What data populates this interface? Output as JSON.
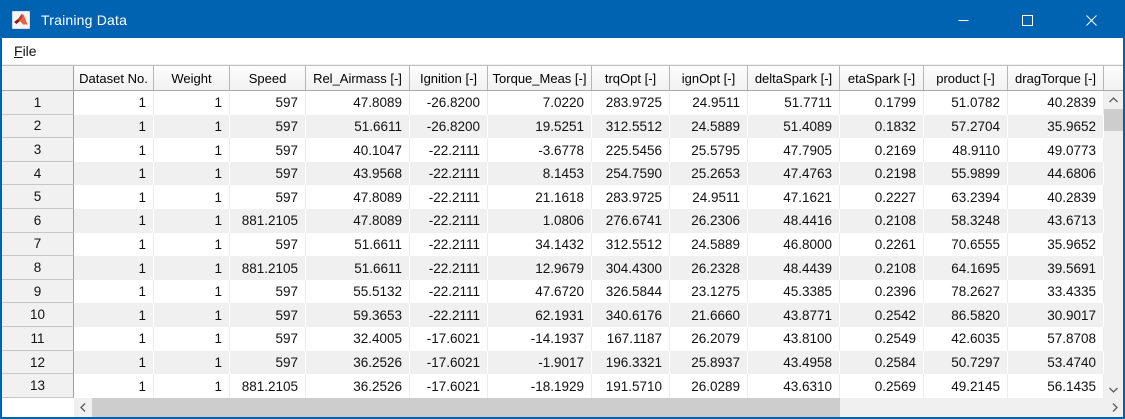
{
  "window": {
    "title": "Training Data",
    "controls": {
      "minimize": "minimize",
      "maximize": "maximize",
      "close": "close"
    }
  },
  "menu": {
    "items": [
      {
        "label": "File"
      }
    ]
  },
  "colors": {
    "titlebar_blue": "#0063b1",
    "stripe_gray": "#f0f0f0",
    "header_border": "#a9a9a9",
    "scroll_thumb": "#cdcdcd"
  },
  "table": {
    "corner_label": "",
    "columns": [
      "Dataset No.",
      "Weight",
      "Speed",
      "Rel_Airmass [-]",
      "Ignition [-]",
      "Torque_Meas [-]",
      "trqOpt [-]",
      "ignOpt [-]",
      "deltaSpark [-]",
      "etaSpark [-]",
      "product [-]",
      "dragTorque [-]"
    ],
    "rows": [
      {
        "row": "1",
        "cells": [
          "1",
          "1",
          "597",
          "47.8089",
          "-26.8200",
          "7.0220",
          "283.9725",
          "24.9511",
          "51.7711",
          "0.1799",
          "51.0782",
          "40.2839"
        ]
      },
      {
        "row": "2",
        "cells": [
          "1",
          "1",
          "597",
          "51.6611",
          "-26.8200",
          "19.5251",
          "312.5512",
          "24.5889",
          "51.4089",
          "0.1832",
          "57.2704",
          "35.9652"
        ]
      },
      {
        "row": "3",
        "cells": [
          "1",
          "1",
          "597",
          "40.1047",
          "-22.2111",
          "-3.6778",
          "225.5456",
          "25.5795",
          "47.7905",
          "0.2169",
          "48.9110",
          "49.0773"
        ]
      },
      {
        "row": "4",
        "cells": [
          "1",
          "1",
          "597",
          "43.9568",
          "-22.2111",
          "8.1453",
          "254.7590",
          "25.2653",
          "47.4763",
          "0.2198",
          "55.9899",
          "44.6806"
        ]
      },
      {
        "row": "5",
        "cells": [
          "1",
          "1",
          "597",
          "47.8089",
          "-22.2111",
          "21.1618",
          "283.9725",
          "24.9511",
          "47.1621",
          "0.2227",
          "63.2394",
          "40.2839"
        ]
      },
      {
        "row": "6",
        "cells": [
          "1",
          "1",
          "881.2105",
          "47.8089",
          "-22.2111",
          "1.0806",
          "276.6741",
          "26.2306",
          "48.4416",
          "0.2108",
          "58.3248",
          "43.6713"
        ]
      },
      {
        "row": "7",
        "cells": [
          "1",
          "1",
          "597",
          "51.6611",
          "-22.2111",
          "34.1432",
          "312.5512",
          "24.5889",
          "46.8000",
          "0.2261",
          "70.6555",
          "35.9652"
        ]
      },
      {
        "row": "8",
        "cells": [
          "1",
          "1",
          "881.2105",
          "51.6611",
          "-22.2111",
          "12.9679",
          "304.4300",
          "26.2328",
          "48.4439",
          "0.2108",
          "64.1695",
          "39.5691"
        ]
      },
      {
        "row": "9",
        "cells": [
          "1",
          "1",
          "597",
          "55.5132",
          "-22.2111",
          "47.6720",
          "326.5844",
          "23.1275",
          "45.3385",
          "0.2396",
          "78.2627",
          "33.4335"
        ]
      },
      {
        "row": "10",
        "cells": [
          "1",
          "1",
          "597",
          "59.3653",
          "-22.2111",
          "62.1931",
          "340.6176",
          "21.6660",
          "43.8771",
          "0.2542",
          "86.5820",
          "30.9017"
        ]
      },
      {
        "row": "11",
        "cells": [
          "1",
          "1",
          "597",
          "32.4005",
          "-17.6021",
          "-14.1937",
          "167.1187",
          "26.2079",
          "43.8100",
          "0.2549",
          "42.6035",
          "57.8708"
        ]
      },
      {
        "row": "12",
        "cells": [
          "1",
          "1",
          "597",
          "36.2526",
          "-17.6021",
          "-1.9017",
          "196.3321",
          "25.8937",
          "43.4958",
          "0.2584",
          "50.7297",
          "53.4740"
        ]
      },
      {
        "row": "13",
        "cells": [
          "1",
          "1",
          "881.2105",
          "36.2526",
          "-17.6021",
          "-18.1929",
          "191.5710",
          "26.0289",
          "43.6310",
          "0.2569",
          "49.2145",
          "56.1435"
        ]
      }
    ]
  }
}
